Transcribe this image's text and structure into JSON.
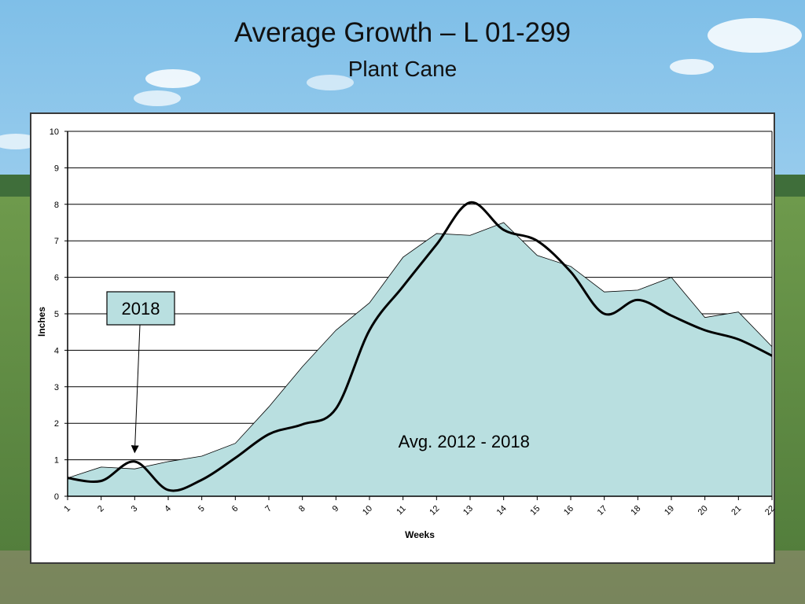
{
  "header": {
    "title": "Average Growth – L 01-299",
    "subtitle": "Plant Cane"
  },
  "colors": {
    "area_fill": "#b9dfe0",
    "line": "#000000",
    "grid": "#000000"
  },
  "chart_data": {
    "type": "line",
    "title": "Average Growth – L 01-299",
    "subtitle": "Plant Cane",
    "xlabel": "Weeks",
    "ylabel": "Inches",
    "x": [
      1,
      2,
      3,
      4,
      5,
      6,
      7,
      8,
      9,
      10,
      11,
      12,
      13,
      14,
      15,
      16,
      17,
      18,
      19,
      20,
      21,
      22
    ],
    "xticks": [
      "1",
      "2",
      "3",
      "4",
      "5",
      "6",
      "7",
      "8",
      "9",
      "10",
      "11",
      "12",
      "13",
      "14",
      "15",
      "16",
      "17",
      "18",
      "19",
      "20",
      "21",
      "22"
    ],
    "ylim": [
      0,
      10
    ],
    "yticks": [
      "0",
      "1",
      "2",
      "3",
      "4",
      "5",
      "6",
      "7",
      "8",
      "9",
      "10"
    ],
    "grid": "horizontal",
    "series": [
      {
        "name": "Avg. 2012 - 2018",
        "style": "area",
        "values": [
          0.5,
          0.8,
          0.75,
          0.95,
          1.1,
          1.45,
          2.45,
          3.55,
          4.55,
          5.3,
          6.55,
          7.2,
          7.15,
          7.5,
          6.6,
          6.3,
          5.6,
          5.65,
          6.0,
          4.9,
          5.05,
          4.1
        ]
      },
      {
        "name": "2018",
        "style": "smooth-line",
        "values": [
          0.5,
          0.42,
          0.95,
          0.17,
          0.45,
          1.05,
          1.7,
          1.97,
          2.4,
          4.55,
          5.75,
          6.9,
          8.05,
          7.3,
          7.0,
          6.15,
          5.0,
          5.38,
          4.95,
          4.55,
          4.3,
          3.85
        ]
      }
    ],
    "annotations": [
      {
        "text": "2018",
        "type": "callout-box",
        "target_x": 3,
        "target_y": 1.2
      },
      {
        "text": "Avg. 2012 - 2018",
        "type": "label",
        "x": 12.5,
        "y": 1.55
      }
    ]
  }
}
